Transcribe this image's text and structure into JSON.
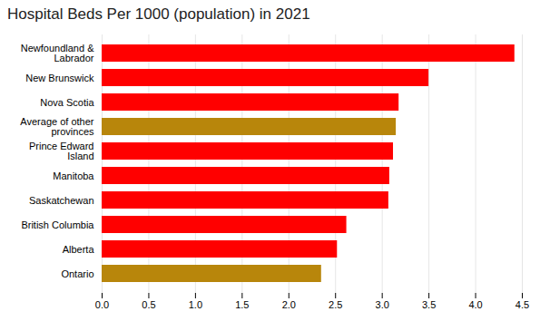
{
  "chart_data": {
    "type": "bar",
    "orientation": "horizontal",
    "title": "Hospital Beds Per 1000 (population) in 2021",
    "categories": [
      "Ontario",
      "Alberta",
      "British Columbia",
      "Saskatchewan",
      "Manitoba",
      "Prince Edward\nIsland",
      "Average of other\nprovinces",
      "Nova Scotia",
      "New Brunswick",
      "Newfoundland &\nLabrador"
    ],
    "values": [
      2.35,
      2.52,
      2.62,
      3.07,
      3.08,
      3.12,
      3.15,
      3.18,
      3.5,
      4.42
    ],
    "colors": [
      "#b8860b",
      "#ff0000",
      "#ff0000",
      "#ff0000",
      "#ff0000",
      "#ff0000",
      "#b8860b",
      "#ff0000",
      "#ff0000",
      "#ff0000"
    ],
    "xlim": [
      0,
      4.5
    ],
    "xticks": [
      {
        "value": 0,
        "label": "0.0"
      },
      0.5,
      {
        "value": 1,
        "label": "1.0"
      },
      1.5,
      {
        "value": 2,
        "label": "2.0"
      },
      2.5,
      {
        "value": 3,
        "label": "3.0"
      },
      3.5,
      {
        "value": 4,
        "label": "4.0"
      },
      4.5
    ],
    "grid": true
  }
}
